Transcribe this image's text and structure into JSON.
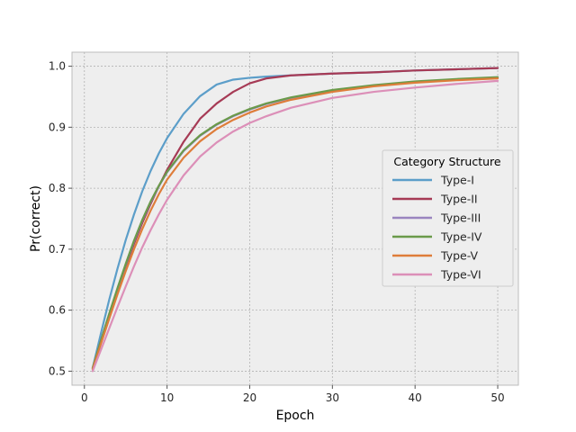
{
  "chart_data": {
    "type": "line",
    "title": "",
    "xlabel": "Epoch",
    "ylabel": "Pr(correct)",
    "xlim": [
      -1.5,
      52.5
    ],
    "ylim": [
      0.477,
      1.023
    ],
    "xticks": [
      0,
      10,
      20,
      30,
      40,
      50
    ],
    "yticks": [
      0.5,
      0.6,
      0.7,
      0.8,
      0.9,
      1.0
    ],
    "xtick_labels": [
      "0",
      "10",
      "20",
      "30",
      "40",
      "50"
    ],
    "ytick_labels": [
      "0.5",
      "0.6",
      "0.7",
      "0.8",
      "0.9",
      "1.0"
    ],
    "grid": true,
    "legend": {
      "title": "Category Structure",
      "position": "center-right"
    },
    "x": [
      1,
      2,
      3,
      4,
      5,
      6,
      7,
      8,
      9,
      10,
      12,
      14,
      16,
      18,
      20,
      22,
      25,
      30,
      35,
      40,
      45,
      50
    ],
    "series": [
      {
        "name": "Type-I",
        "color": "#5c9ec9",
        "values": [
          0.505,
          0.562,
          0.617,
          0.668,
          0.715,
          0.757,
          0.795,
          0.828,
          0.857,
          0.882,
          0.922,
          0.951,
          0.97,
          0.978,
          0.981,
          0.983,
          0.985,
          0.988,
          0.99,
          0.993,
          0.995,
          0.997
        ]
      },
      {
        "name": "Type-II",
        "color": "#a63a55",
        "values": [
          0.505,
          0.55,
          0.593,
          0.634,
          0.673,
          0.709,
          0.743,
          0.774,
          0.803,
          0.83,
          0.876,
          0.914,
          0.939,
          0.958,
          0.972,
          0.98,
          0.985,
          0.988,
          0.99,
          0.993,
          0.995,
          0.997
        ]
      },
      {
        "name": "Type-III",
        "color": "#9a85bf",
        "values": [
          0.505,
          0.549,
          0.593,
          0.635,
          0.675,
          0.713,
          0.747,
          0.777,
          0.803,
          0.826,
          0.861,
          0.886,
          0.904,
          0.918,
          0.929,
          0.938,
          0.948,
          0.96,
          0.968,
          0.974,
          0.978,
          0.981
        ]
      },
      {
        "name": "Type-IV",
        "color": "#6a9a4a",
        "values": [
          0.505,
          0.55,
          0.594,
          0.636,
          0.676,
          0.714,
          0.748,
          0.778,
          0.804,
          0.827,
          0.862,
          0.887,
          0.905,
          0.919,
          0.93,
          0.939,
          0.949,
          0.961,
          0.969,
          0.975,
          0.979,
          0.982
        ]
      },
      {
        "name": "Type-V",
        "color": "#de7d3a",
        "values": [
          0.503,
          0.545,
          0.586,
          0.626,
          0.664,
          0.7,
          0.733,
          0.763,
          0.79,
          0.814,
          0.85,
          0.877,
          0.897,
          0.912,
          0.924,
          0.934,
          0.945,
          0.958,
          0.967,
          0.973,
          0.977,
          0.98
        ]
      },
      {
        "name": "Type-VI",
        "color": "#dc8fb8",
        "values": [
          0.5,
          0.535,
          0.57,
          0.605,
          0.639,
          0.672,
          0.703,
          0.731,
          0.757,
          0.781,
          0.821,
          0.852,
          0.875,
          0.893,
          0.907,
          0.918,
          0.932,
          0.948,
          0.958,
          0.965,
          0.971,
          0.976
        ]
      }
    ]
  }
}
